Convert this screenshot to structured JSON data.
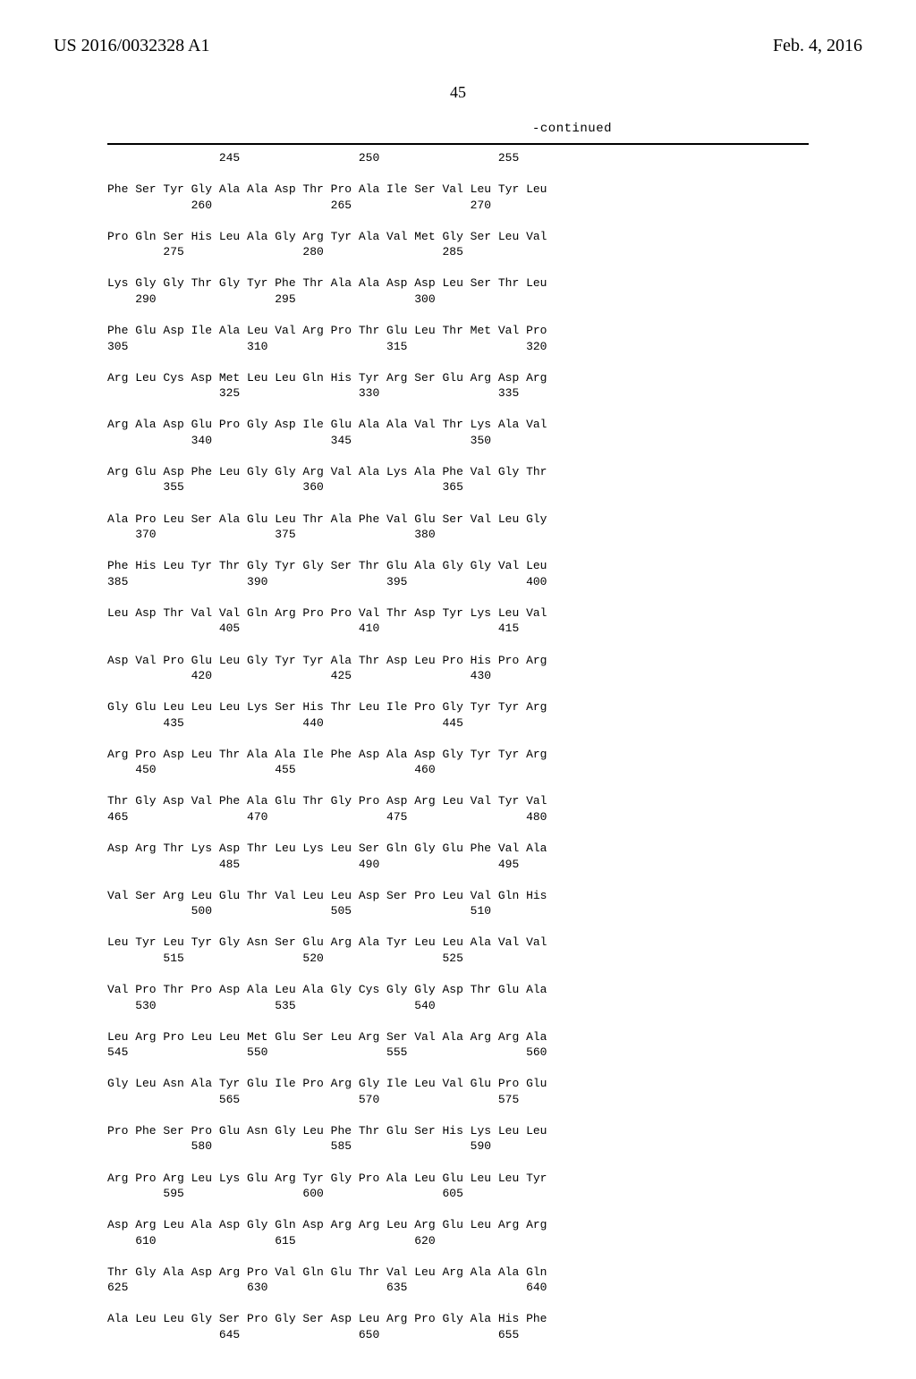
{
  "header": {
    "publication_number": "US 2016/0032328 A1",
    "publication_date": "Feb. 4, 2016"
  },
  "page_number": "45",
  "continued_label": "-continued",
  "sequence_text": "                245                 250                 255\n\nPhe Ser Tyr Gly Ala Ala Asp Thr Pro Ala Ile Ser Val Leu Tyr Leu\n            260                 265                 270\n\nPro Gln Ser His Leu Ala Gly Arg Tyr Ala Val Met Gly Ser Leu Val\n        275                 280                 285\n\nLys Gly Gly Thr Gly Tyr Phe Thr Ala Ala Asp Asp Leu Ser Thr Leu\n    290                 295                 300\n\nPhe Glu Asp Ile Ala Leu Val Arg Pro Thr Glu Leu Thr Met Val Pro\n305                 310                 315                 320\n\nArg Leu Cys Asp Met Leu Leu Gln His Tyr Arg Ser Glu Arg Asp Arg\n                325                 330                 335\n\nArg Ala Asp Glu Pro Gly Asp Ile Glu Ala Ala Val Thr Lys Ala Val\n            340                 345                 350\n\nArg Glu Asp Phe Leu Gly Gly Arg Val Ala Lys Ala Phe Val Gly Thr\n        355                 360                 365\n\nAla Pro Leu Ser Ala Glu Leu Thr Ala Phe Val Glu Ser Val Leu Gly\n    370                 375                 380\n\nPhe His Leu Tyr Thr Gly Tyr Gly Ser Thr Glu Ala Gly Gly Val Leu\n385                 390                 395                 400\n\nLeu Asp Thr Val Val Gln Arg Pro Pro Val Thr Asp Tyr Lys Leu Val\n                405                 410                 415\n\nAsp Val Pro Glu Leu Gly Tyr Tyr Ala Thr Asp Leu Pro His Pro Arg\n            420                 425                 430\n\nGly Glu Leu Leu Leu Lys Ser His Thr Leu Ile Pro Gly Tyr Tyr Arg\n        435                 440                 445\n\nArg Pro Asp Leu Thr Ala Ala Ile Phe Asp Ala Asp Gly Tyr Tyr Arg\n    450                 455                 460\n\nThr Gly Asp Val Phe Ala Glu Thr Gly Pro Asp Arg Leu Val Tyr Val\n465                 470                 475                 480\n\nAsp Arg Thr Lys Asp Thr Leu Lys Leu Ser Gln Gly Glu Phe Val Ala\n                485                 490                 495\n\nVal Ser Arg Leu Glu Thr Val Leu Leu Asp Ser Pro Leu Val Gln His\n            500                 505                 510\n\nLeu Tyr Leu Tyr Gly Asn Ser Glu Arg Ala Tyr Leu Leu Ala Val Val\n        515                 520                 525\n\nVal Pro Thr Pro Asp Ala Leu Ala Gly Cys Gly Gly Asp Thr Glu Ala\n    530                 535                 540\n\nLeu Arg Pro Leu Leu Met Glu Ser Leu Arg Ser Val Ala Arg Arg Ala\n545                 550                 555                 560\n\nGly Leu Asn Ala Tyr Glu Ile Pro Arg Gly Ile Leu Val Glu Pro Glu\n                565                 570                 575\n\nPro Phe Ser Pro Glu Asn Gly Leu Phe Thr Glu Ser His Lys Leu Leu\n            580                 585                 590\n\nArg Pro Arg Leu Lys Glu Arg Tyr Gly Pro Ala Leu Glu Leu Leu Tyr\n        595                 600                 605\n\nAsp Arg Leu Ala Asp Gly Gln Asp Arg Arg Leu Arg Glu Leu Arg Arg\n    610                 615                 620\n\nThr Gly Ala Asp Arg Pro Val Gln Glu Thr Val Leu Arg Ala Ala Gln\n625                 630                 635                 640\n\nAla Leu Leu Gly Ser Pro Gly Ser Asp Leu Arg Pro Gly Ala His Phe\n                645                 650                 655"
}
